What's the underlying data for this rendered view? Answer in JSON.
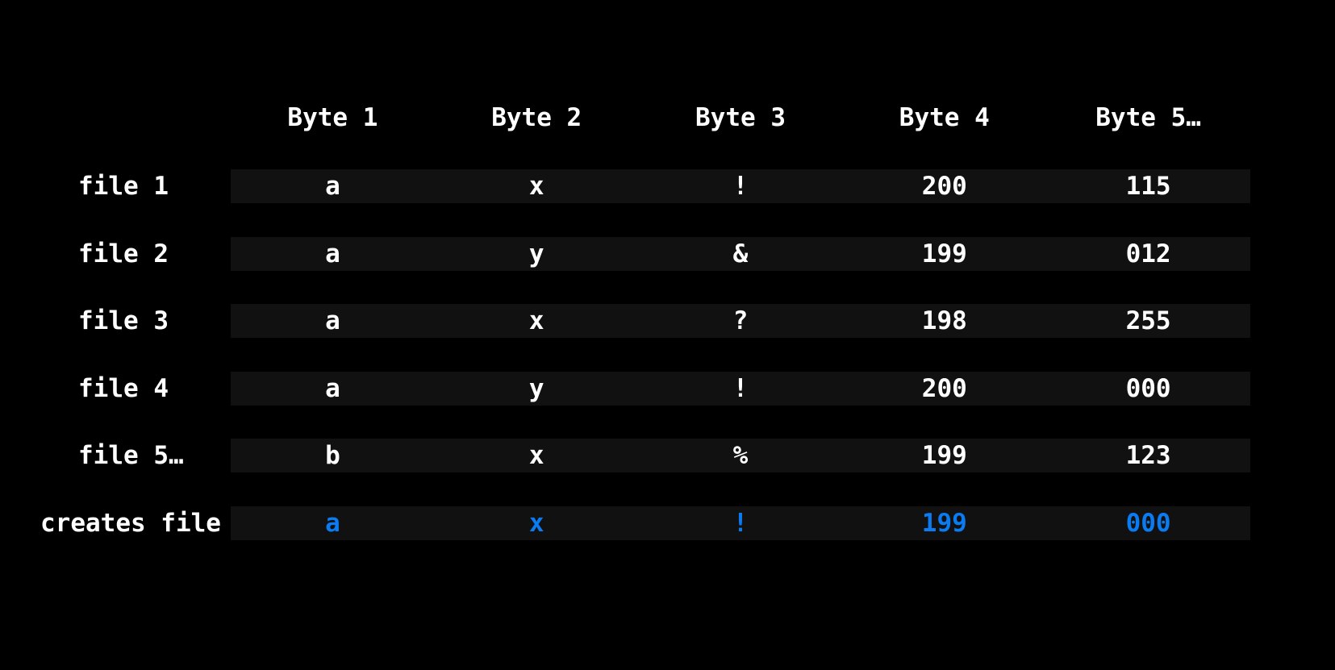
{
  "colors": {
    "background": "#000000",
    "row_band": "#111111",
    "text": "#ffffff",
    "accent": "#0a7bf0"
  },
  "headers": [
    "Byte 1",
    "Byte 2",
    "Byte 3",
    "Byte 4",
    "Byte 5…"
  ],
  "rows": [
    {
      "label": "file 1",
      "cells": [
        "a",
        "x",
        "!",
        "200",
        "115"
      ]
    },
    {
      "label": "file 2",
      "cells": [
        "a",
        "y",
        "&",
        "199",
        "012"
      ]
    },
    {
      "label": "file 3",
      "cells": [
        "a",
        "x",
        "?",
        "198",
        "255"
      ]
    },
    {
      "label": "file 4",
      "cells": [
        "a",
        "y",
        "!",
        "200",
        "000"
      ]
    },
    {
      "label": "file 5…",
      "cells": [
        "b",
        "x",
        "%",
        "199",
        "123"
      ]
    }
  ],
  "result": {
    "label": "creates file",
    "cells": [
      "a",
      "x",
      "!",
      "199",
      "000"
    ]
  }
}
